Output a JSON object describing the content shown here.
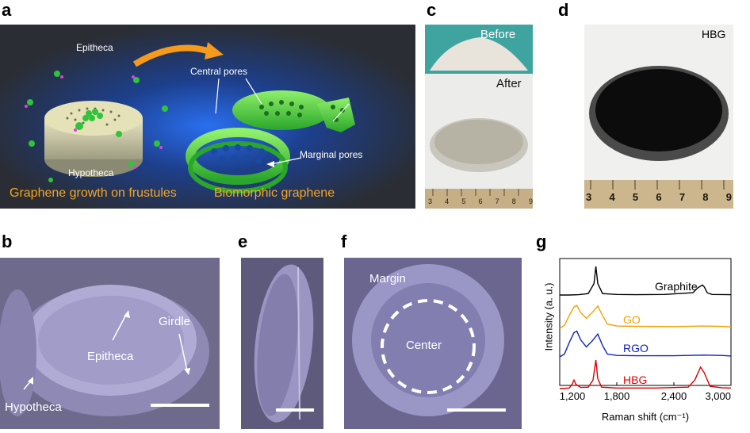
{
  "panels": {
    "a": {
      "letter": "a",
      "epitheca": "Epitheca",
      "hypotheca": "Hypotheca",
      "central_pores": "Central pores",
      "marginal_pores": "Marginal pores",
      "caption_left": "Graphene growth on frustules",
      "caption_right": "Biomorphic graphene",
      "caption_color": "#f5a623"
    },
    "b": {
      "letter": "b",
      "epitheca": "Epitheca",
      "girdle": "Girdle",
      "hypotheca": "Hypotheca"
    },
    "c": {
      "letter": "c",
      "before": "Before",
      "after": "After",
      "ruler": [
        "3",
        "4",
        "5",
        "6",
        "7",
        "8",
        "9"
      ]
    },
    "d": {
      "letter": "d",
      "label": "HBG",
      "ruler": [
        "3",
        "4",
        "5",
        "6",
        "7",
        "8",
        "9"
      ]
    },
    "e": {
      "letter": "e"
    },
    "f": {
      "letter": "f",
      "margin": "Margin",
      "center": "Center"
    },
    "g": {
      "letter": "g"
    }
  },
  "chart_data": {
    "type": "line",
    "title": "",
    "xlabel": "Raman shift (cm⁻¹)",
    "ylabel": "Intensity (a. u.)",
    "xlim": [
      1200,
      3000
    ],
    "xticks": [
      "1,200",
      "1,800",
      "2,400",
      "3,000"
    ],
    "series": [
      {
        "name": "Graphite",
        "color": "#000000",
        "x": [
          1200,
          1300,
          1400,
          1500,
          1560,
          1580,
          1600,
          1650,
          1800,
          2000,
          2300,
          2600,
          2650,
          2700,
          2720,
          2750,
          2800,
          3000
        ],
        "y": [
          0,
          0,
          0.01,
          0.05,
          0.4,
          1.0,
          0.4,
          0.05,
          0.02,
          0.01,
          0.02,
          0.08,
          0.25,
          0.35,
          0.28,
          0.08,
          0.02,
          0.01
        ]
      },
      {
        "name": "GO",
        "color": "#f5a000",
        "x": [
          1200,
          1250,
          1300,
          1350,
          1380,
          1420,
          1480,
          1540,
          1600,
          1650,
          1700,
          1800,
          2000,
          2400,
          2700,
          2900,
          3000
        ],
        "y": [
          0,
          0.1,
          0.45,
          0.75,
          0.8,
          0.55,
          0.35,
          0.55,
          0.78,
          0.45,
          0.15,
          0.08,
          0.07,
          0.06,
          0.08,
          0.07,
          0.05
        ]
      },
      {
        "name": "RGO",
        "color": "#1020c0",
        "x": [
          1200,
          1250,
          1300,
          1350,
          1380,
          1420,
          1480,
          1540,
          1600,
          1650,
          1700,
          1800,
          2000,
          2400,
          2700,
          2900,
          3000
        ],
        "y": [
          0,
          0.1,
          0.5,
          0.85,
          0.9,
          0.6,
          0.35,
          0.55,
          0.8,
          0.4,
          0.1,
          0.05,
          0.04,
          0.04,
          0.06,
          0.05,
          0.03
        ]
      },
      {
        "name": "HBG",
        "color": "#e00000",
        "x": [
          1200,
          1300,
          1330,
          1350,
          1370,
          1420,
          1500,
          1550,
          1580,
          1600,
          1640,
          1800,
          2200,
          2550,
          2620,
          2680,
          2720,
          2780,
          2900,
          3000
        ],
        "y": [
          0,
          0.02,
          0.15,
          0.3,
          0.15,
          0.04,
          0.05,
          0.3,
          1.0,
          0.35,
          0.05,
          0.02,
          0.02,
          0.05,
          0.3,
          0.75,
          0.55,
          0.08,
          0.03,
          0.02
        ]
      }
    ]
  }
}
